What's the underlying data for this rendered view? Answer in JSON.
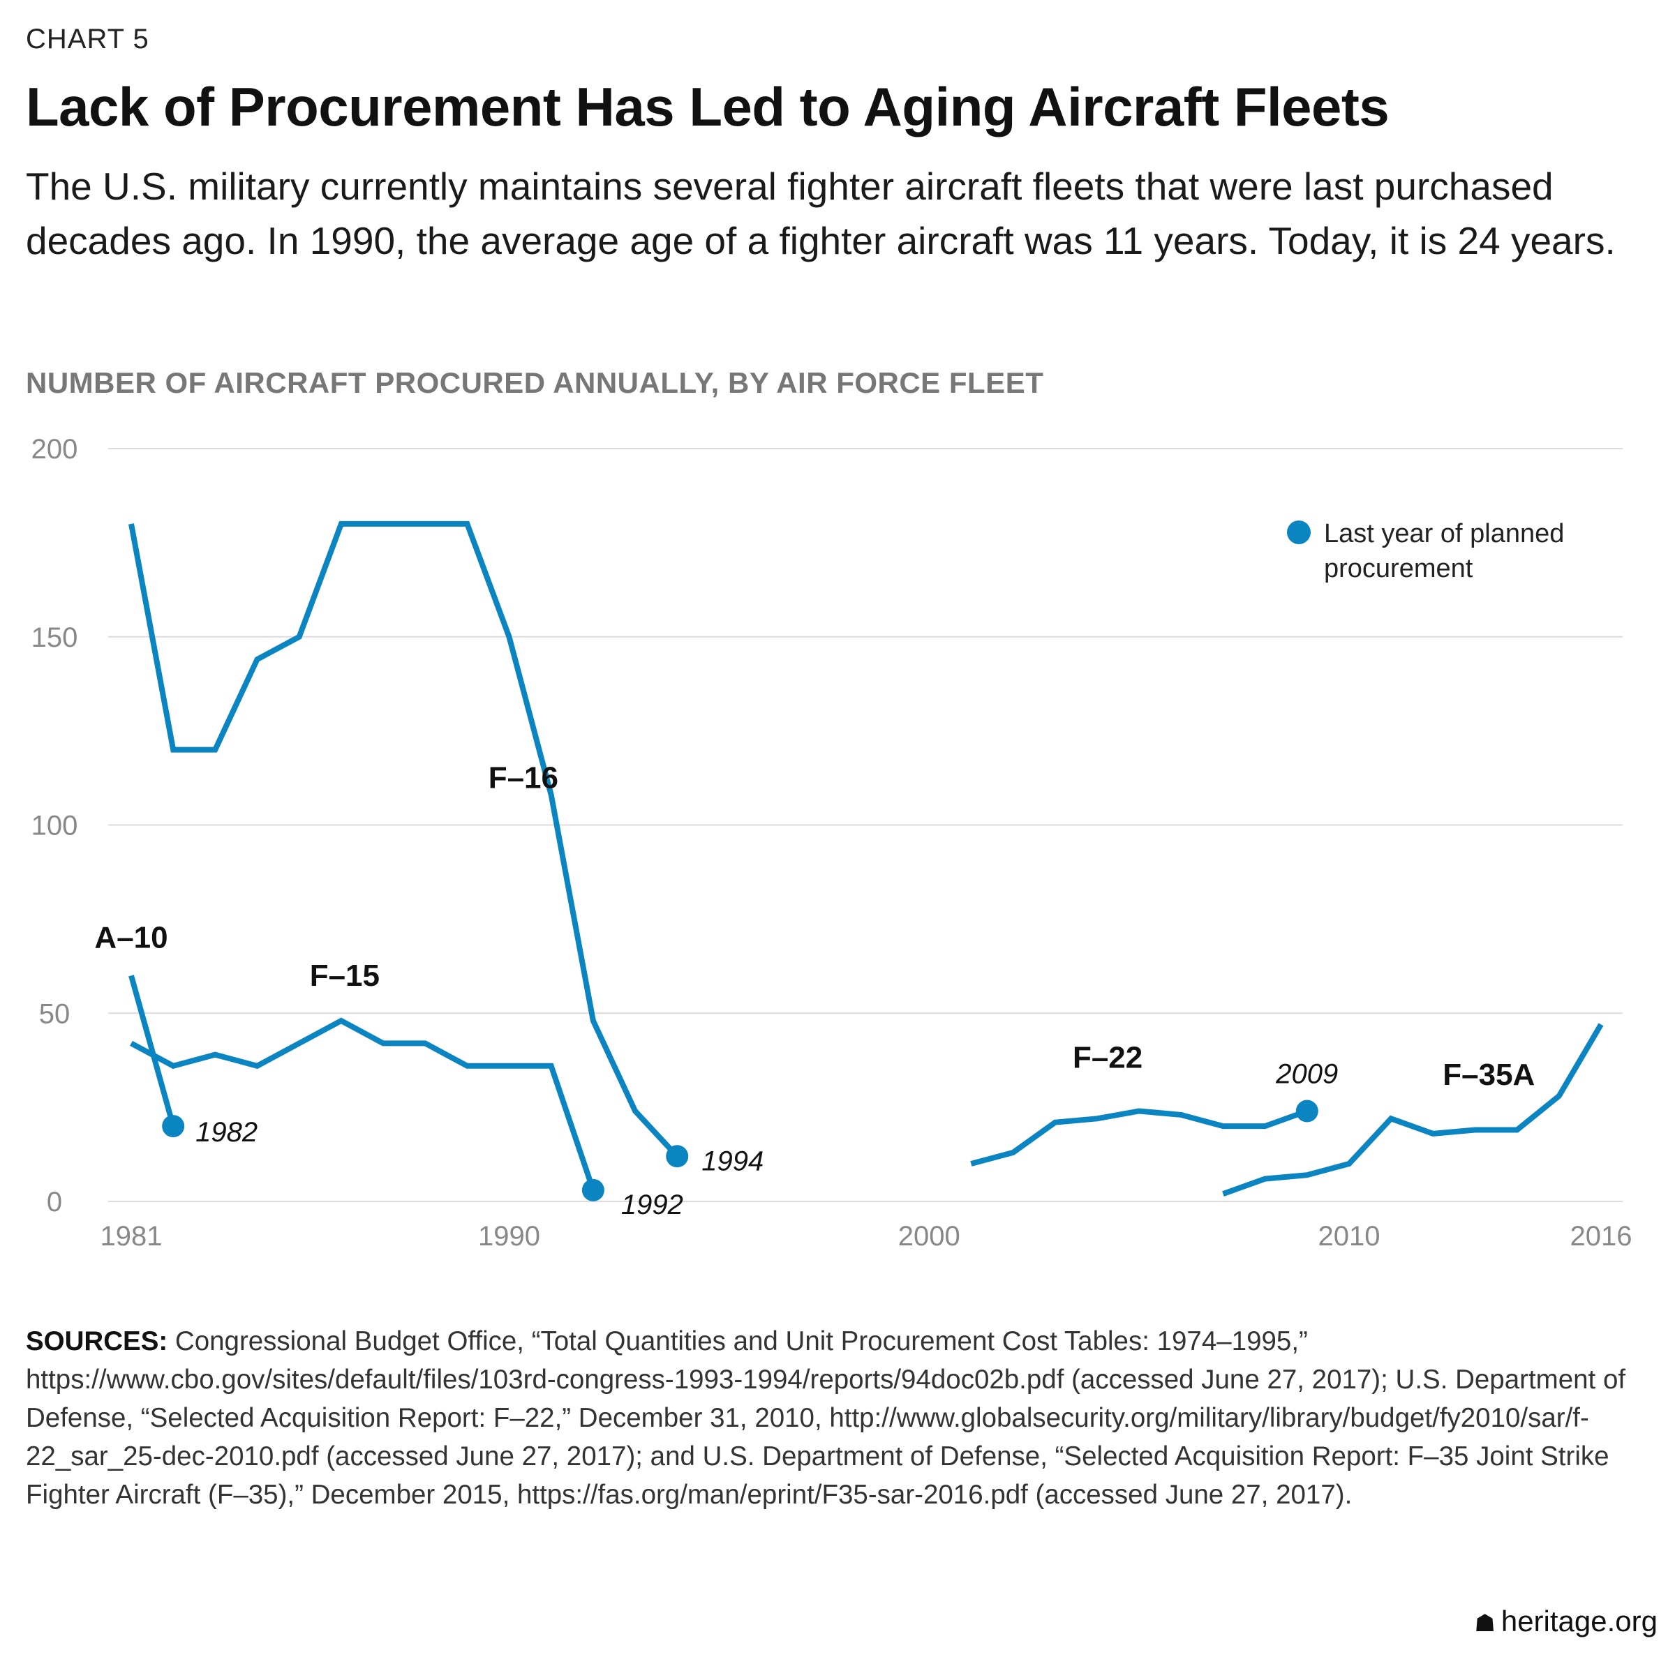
{
  "header": {
    "chart_label": "CHART 5",
    "title": "Lack of Procurement Has Led to Aging Aircraft Fleets",
    "subtitle": "The U.S. military currently maintains several fighter aircraft fleets that were last purchased decades ago. In 1990, the average age of a fighter aircraft was 11 years. Today, it is 24 years.",
    "chart_heading": "NUMBER OF AIRCRAFT PROCURED ANNUALLY, BY AIR FORCE FLEET"
  },
  "colors": {
    "line": "#0a85c2",
    "grid": "#dcdcdc",
    "tick": "#888888"
  },
  "chart_data": {
    "type": "line",
    "title": "NUMBER OF AIRCRAFT PROCURED ANNUALLY, BY AIR FORCE FLEET",
    "xlabel": "",
    "ylabel": "",
    "xlim": [
      1981,
      2016
    ],
    "ylim": [
      0,
      200
    ],
    "yticks": [
      0,
      50,
      100,
      150,
      200
    ],
    "xticks": [
      1981,
      1990,
      2000,
      2010,
      2016
    ],
    "grid": "horizontal",
    "legend": {
      "label": "Last year of planned procurement",
      "position": "top-right"
    },
    "series": [
      {
        "name": "F–16",
        "x": [
          1981,
          1982,
          1983,
          1984,
          1985,
          1986,
          1987,
          1988,
          1989,
          1990,
          1991,
          1992,
          1993,
          1994
        ],
        "values": [
          180,
          120,
          120,
          144,
          150,
          180,
          180,
          180,
          180,
          150,
          108,
          48,
          24,
          12
        ],
        "marker_year": 1994,
        "marker_label": "1994"
      },
      {
        "name": "A–10",
        "x": [
          1981,
          1982
        ],
        "values": [
          60,
          20
        ],
        "marker_year": 1982,
        "marker_label": "1982"
      },
      {
        "name": "F–15",
        "x": [
          1981,
          1982,
          1983,
          1984,
          1985,
          1986,
          1987,
          1988,
          1989,
          1990,
          1991,
          1992
        ],
        "values": [
          42,
          36,
          39,
          36,
          42,
          48,
          42,
          42,
          36,
          36,
          36,
          3
        ],
        "marker_year": 1992,
        "marker_label": "1992"
      },
      {
        "name": "F–22",
        "x": [
          2001,
          2002,
          2003,
          2004,
          2005,
          2006,
          2007,
          2008,
          2009
        ],
        "values": [
          10,
          13,
          21,
          22,
          24,
          23,
          20,
          20,
          24
        ],
        "marker_year": 2009,
        "marker_label": "2009"
      },
      {
        "name": "F–35A",
        "x": [
          2007,
          2008,
          2009,
          2010,
          2011,
          2012,
          2013,
          2014,
          2015,
          2016
        ],
        "values": [
          2,
          6,
          7,
          10,
          22,
          18,
          19,
          19,
          28,
          47
        ]
      }
    ]
  },
  "sources": {
    "label": "SOURCES:",
    "text": " Congressional Budget Office, “Total Quantities and Unit Procurement Cost Tables: 1974–1995,” https://www.cbo.gov/sites/default/files/103rd-congress-1993-1994/reports/94doc02b.pdf (accessed June 27, 2017); U.S. Department of Defense, “Selected Acquisition Report: F–22,” December 31, 2010, http://www.globalsecurity.org/military/library/budget/fy2010/sar/f-22_sar_25-dec-2010.pdf (accessed June 27, 2017); and U.S. Department of Defense, “Selected Acquisition Report: F–35 Joint Strike Fighter Aircraft (F–35),” December 2015, https://fas.org/man/eprint/F35-sar-2016.pdf (accessed June 27, 2017)."
  },
  "footer": {
    "brand": "heritage.org",
    "brand_icon": "bell-icon"
  }
}
